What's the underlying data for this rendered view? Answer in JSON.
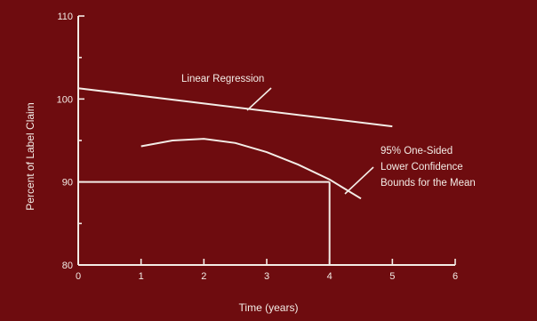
{
  "chart_data": {
    "type": "line",
    "xlabel": "Time  (years)",
    "ylabel": "Percent of Label Claim",
    "xlim": [
      0,
      6
    ],
    "ylim": [
      80,
      110
    ],
    "x_ticks": [
      0,
      1,
      2,
      3,
      4,
      5,
      6
    ],
    "y_ticks": [
      80,
      90,
      100,
      110
    ],
    "grid": false,
    "series": [
      {
        "name": "Linear Regression",
        "x": [
          0,
          5
        ],
        "y": [
          101.3,
          96.7
        ]
      },
      {
        "name": "95% One-Sided Lower Confidence Bounds for the Mean",
        "x": [
          1,
          1.5,
          2,
          2.5,
          3,
          3.5,
          4,
          4.5
        ],
        "y": [
          94.3,
          95.0,
          95.2,
          94.7,
          93.6,
          92.1,
          90.3,
          88.0
        ]
      }
    ],
    "reference_lines": [
      {
        "from": [
          0,
          90
        ],
        "to": [
          4,
          90
        ]
      },
      {
        "from": [
          4,
          90
        ],
        "to": [
          4,
          80
        ]
      }
    ],
    "annotations": [
      {
        "lines": [
          "Linear Regression"
        ]
      },
      {
        "lines": [
          "95% One-Sided",
          "Lower Confidence",
          "Bounds for the Mean"
        ]
      }
    ]
  }
}
